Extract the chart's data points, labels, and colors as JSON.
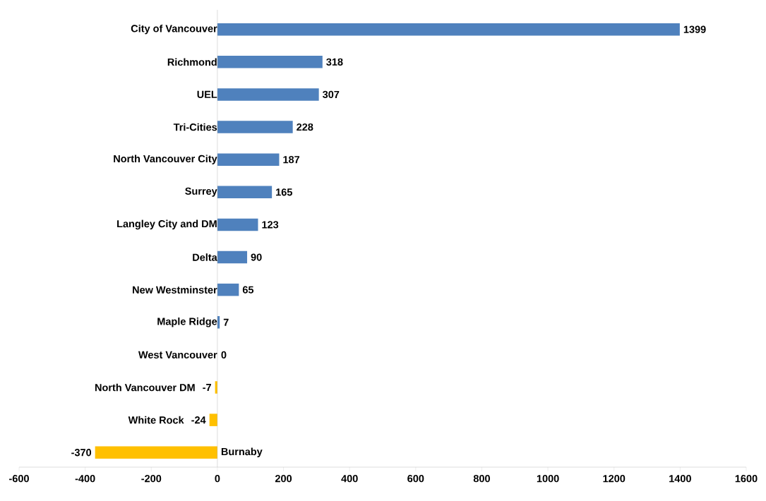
{
  "chart_data": {
    "type": "bar",
    "orientation": "horizontal",
    "categories": [
      "City of Vancouver",
      "Richmond",
      "UEL",
      "Tri-Cities",
      "North Vancouver City",
      "Surrey",
      "Langley City and DM",
      "Delta",
      "New Westminster",
      "Maple Ridge",
      "West Vancouver",
      "North Vancouver DM",
      "White Rock",
      "Burnaby"
    ],
    "values": [
      1399,
      318,
      307,
      228,
      187,
      165,
      123,
      90,
      65,
      7,
      0,
      -7,
      -24,
      -370
    ],
    "colors": [
      "#4f81bd",
      "#4f81bd",
      "#4f81bd",
      "#4f81bd",
      "#4f81bd",
      "#4f81bd",
      "#4f81bd",
      "#4f81bd",
      "#4f81bd",
      "#4f81bd",
      "#4f81bd",
      "#ffc000",
      "#ffc000",
      "#ffc000"
    ],
    "xlim": [
      -600,
      1600
    ],
    "xticks": [
      -600,
      -400,
      -200,
      0,
      200,
      400,
      600,
      800,
      1000,
      1200,
      1400,
      1600
    ],
    "data_labels": true,
    "grid": false
  }
}
